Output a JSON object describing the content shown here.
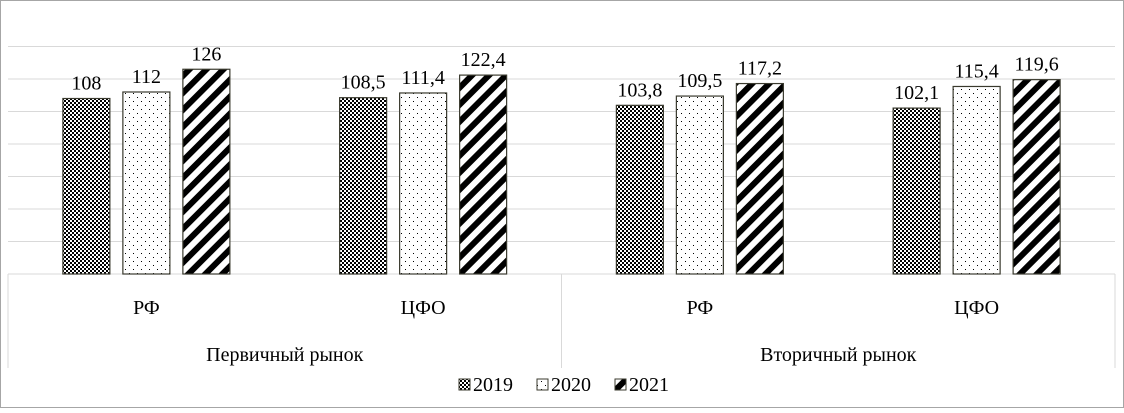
{
  "chart_data": {
    "type": "bar",
    "groups": [
      {
        "label": "Первичный рынок",
        "categories": [
          "РФ",
          "ЦФО"
        ]
      },
      {
        "label": "Вторичный рынок",
        "categories": [
          "РФ",
          "ЦФО"
        ]
      }
    ],
    "categories": [
      "РФ",
      "ЦФО",
      "РФ",
      "ЦФО"
    ],
    "series": [
      {
        "name": "2019",
        "values": [
          108,
          108.5,
          103.8,
          102.1
        ],
        "labels": [
          "108",
          "108,5",
          "103,8",
          "102,1"
        ]
      },
      {
        "name": "2020",
        "values": [
          112,
          111.4,
          109.5,
          115.4
        ],
        "labels": [
          "112",
          "111,4",
          "109,5",
          "115,4"
        ]
      },
      {
        "name": "2021",
        "values": [
          126,
          122.4,
          117.2,
          119.6
        ],
        "labels": [
          "126",
          "122,4",
          "117,2",
          "119,6"
        ]
      }
    ],
    "ylim": [
      0,
      140
    ],
    "y_tick_step": 20,
    "grid": true,
    "legend_position": "bottom",
    "colors": {
      "border": "#a6a6a6",
      "grid": "#d9d9d9",
      "bar_outline": "#3a3a2e",
      "pattern": "#000000"
    }
  }
}
